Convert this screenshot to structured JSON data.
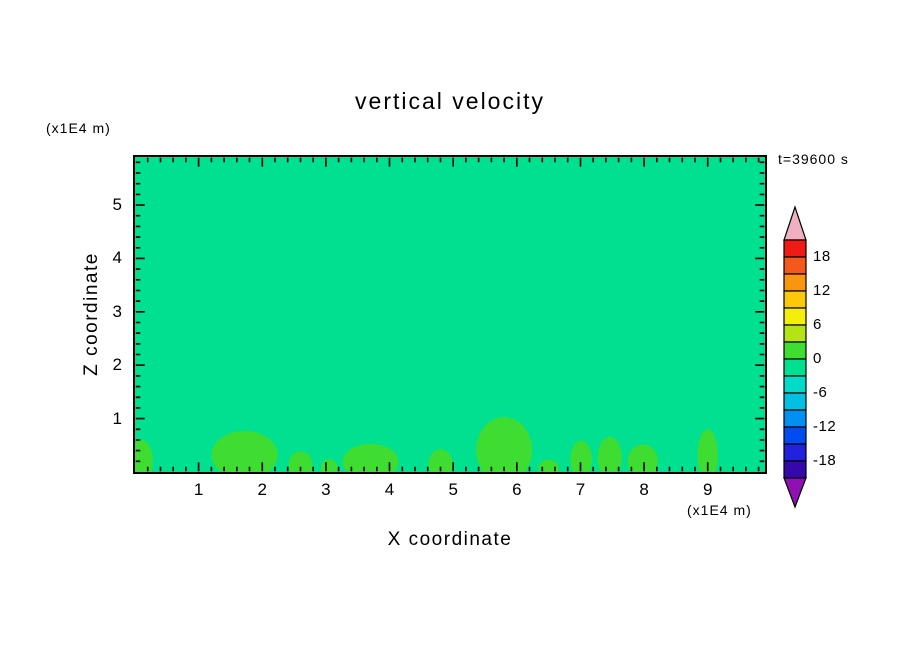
{
  "chart_data": {
    "type": "filled-contour",
    "title": "vertical velocity",
    "xlabel": "X coordinate",
    "zlabel": "Z coordinate",
    "x_unit": "(x1E4 m)",
    "z_unit": "(x1E4 m)",
    "time_label": "t=39600 s",
    "xlim": [
      0,
      9.9
    ],
    "zlim": [
      0,
      5.9
    ],
    "x_major_ticks": [
      1,
      2,
      3,
      4,
      5,
      6,
      7,
      8,
      9
    ],
    "z_major_ticks": [
      1,
      2,
      3,
      4,
      5
    ],
    "minor_tick_step": 0.2,
    "field_band": "-3 to 0",
    "blob_band": "0 to 3",
    "blobs": [
      {
        "x": 0.1,
        "z": 0.2,
        "rx": 0.18,
        "rz": 0.4
      },
      {
        "x": 1.72,
        "z": 0.32,
        "rx": 0.52,
        "rz": 0.45
      },
      {
        "x": 2.6,
        "z": 0.13,
        "rx": 0.19,
        "rz": 0.26
      },
      {
        "x": 3.05,
        "z": 0.08,
        "rx": 0.13,
        "rz": 0.16
      },
      {
        "x": 3.7,
        "z": 0.19,
        "rx": 0.44,
        "rz": 0.34
      },
      {
        "x": 4.8,
        "z": 0.15,
        "rx": 0.19,
        "rz": 0.28
      },
      {
        "x": 5.8,
        "z": 0.41,
        "rx": 0.44,
        "rz": 0.62
      },
      {
        "x": 6.5,
        "z": 0.08,
        "rx": 0.16,
        "rz": 0.15
      },
      {
        "x": 7.01,
        "z": 0.23,
        "rx": 0.17,
        "rz": 0.36
      },
      {
        "x": 7.46,
        "z": 0.26,
        "rx": 0.19,
        "rz": 0.4
      },
      {
        "x": 7.98,
        "z": 0.19,
        "rx": 0.24,
        "rz": 0.33
      },
      {
        "x": 9.0,
        "z": 0.32,
        "rx": 0.16,
        "rz": 0.48
      }
    ],
    "colorbar": {
      "labels": [
        18,
        12,
        6,
        0,
        -6,
        -12,
        -18
      ],
      "over_color": "#f0b0c2",
      "under_color": "#9010b4",
      "bands": [
        {
          "min": 18,
          "max": 21,
          "color": "#ee1c14"
        },
        {
          "min": 15,
          "max": 18,
          "color": "#f4581a"
        },
        {
          "min": 12,
          "max": 15,
          "color": "#f8960f"
        },
        {
          "min": 9,
          "max": 12,
          "color": "#fcc80a"
        },
        {
          "min": 6,
          "max": 9,
          "color": "#f4ee0c"
        },
        {
          "min": 3,
          "max": 6,
          "color": "#b4e414"
        },
        {
          "min": 0,
          "max": 3,
          "color": "#3fdc32"
        },
        {
          "min": -3,
          "max": 0,
          "color": "#00e091"
        },
        {
          "min": -6,
          "max": -3,
          "color": "#00dcc8"
        },
        {
          "min": -9,
          "max": -6,
          "color": "#00c0e4"
        },
        {
          "min": -12,
          "max": -9,
          "color": "#0090f4"
        },
        {
          "min": -15,
          "max": -12,
          "color": "#004cf0"
        },
        {
          "min": -18,
          "max": -15,
          "color": "#2222dc"
        },
        {
          "min": -21,
          "max": -18,
          "color": "#3408ac"
        }
      ]
    }
  }
}
